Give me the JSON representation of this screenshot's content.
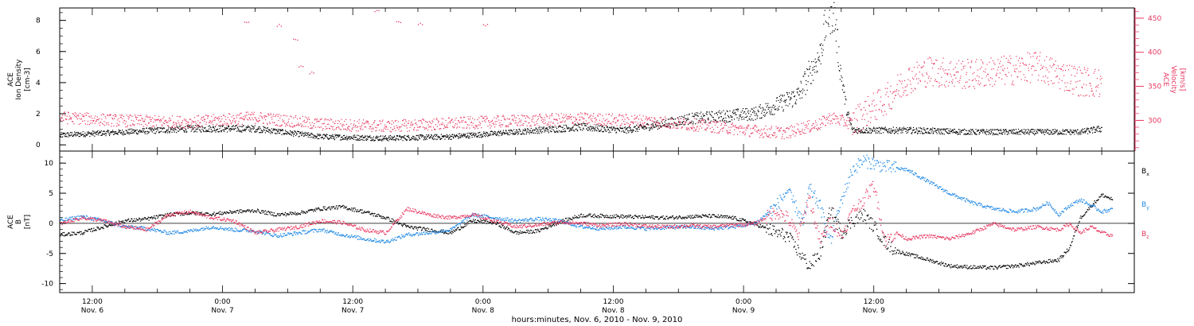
{
  "chart_data": [
    {
      "type": "scatter",
      "panel": "upper",
      "left_axis": {
        "label": [
          "ACE",
          "Ion Density",
          "[cm-3]"
        ],
        "ylim": [
          -0.4,
          8.8
        ],
        "ticks": [
          0,
          2,
          4,
          6,
          8
        ]
      },
      "right_axis": {
        "label": [
          "ACE",
          "Velocity",
          "[km/s]"
        ],
        "ylim": [
          255,
          465
        ],
        "ticks": [
          300,
          350,
          400,
          450
        ],
        "color": "#e8365f"
      },
      "series": [
        {
          "name": "",
          "axis": "left",
          "color": "#000000",
          "points": [
            [
              0,
              0.6
            ],
            [
              6,
              0.8
            ],
            [
              12,
              1.0
            ],
            [
              18,
              1.0
            ],
            [
              24,
              0.5
            ],
            [
              30,
              0.4
            ],
            [
              36,
              0.5
            ],
            [
              42,
              0.8
            ],
            [
              48,
              1.1
            ],
            [
              52,
              0.9
            ],
            [
              54,
              1.1
            ],
            [
              58,
              1.6
            ],
            [
              62,
              1.8
            ],
            [
              64,
              1.9
            ],
            [
              66,
              2.4
            ],
            [
              68,
              3.0
            ],
            [
              70,
              5.5
            ],
            [
              70.7,
              8.0
            ],
            [
              71.3,
              8.2
            ],
            [
              71.8,
              5.0
            ],
            [
              72.5,
              2.0
            ],
            [
              73,
              0.9
            ],
            [
              78,
              0.9
            ],
            [
              84,
              0.8
            ],
            [
              90,
              0.8
            ],
            [
              94,
              0.8
            ],
            [
              96,
              1.0
            ]
          ]
        },
        {
          "name": "",
          "axis": "right",
          "color": "#e8365f",
          "points": [
            [
              0,
              305
            ],
            [
              6,
              300
            ],
            [
              12,
              298
            ],
            [
              18,
              305
            ],
            [
              24,
              295
            ],
            [
              30,
              292
            ],
            [
              36,
              296
            ],
            [
              42,
              300
            ],
            [
              48,
              303
            ],
            [
              54,
              300
            ],
            [
              60,
              292
            ],
            [
              64,
              285
            ],
            [
              66,
              283
            ],
            [
              67,
              282
            ],
            [
              68,
              288
            ],
            [
              70,
              295
            ],
            [
              71,
              305
            ],
            [
              72,
              300
            ],
            [
              73,
              296
            ],
            [
              74,
              310
            ],
            [
              76,
              330
            ],
            [
              78,
              360
            ],
            [
              80,
              373
            ],
            [
              82,
              370
            ],
            [
              84,
              368
            ],
            [
              86,
              372
            ],
            [
              88,
              375
            ],
            [
              90,
              380
            ],
            [
              92,
              368
            ],
            [
              94,
              358
            ],
            [
              96,
              355
            ]
          ]
        },
        {
          "name": "",
          "axis": "right",
          "color": "#e8365f",
          "points": [
            [
              17,
              445
            ],
            [
              20,
              440
            ],
            [
              21.5,
              420
            ],
            [
              22,
              380
            ],
            [
              23,
              370
            ],
            [
              29,
              462
            ],
            [
              31,
              445
            ],
            [
              33,
              442
            ],
            [
              39,
              441
            ]
          ]
        }
      ]
    },
    {
      "type": "line",
      "panel": "lower",
      "left_axis": {
        "label": [
          "ACE",
          "B",
          "[nT]"
        ],
        "ylim": [
          -11.5,
          12
        ],
        "ticks": [
          -10,
          -5,
          0,
          5,
          10
        ]
      },
      "series": [
        {
          "name": "Bx",
          "color": "#000000",
          "points": [
            [
              0,
              -1.8
            ],
            [
              2,
              -1.5
            ],
            [
              4,
              -0.5
            ],
            [
              6,
              0.5
            ],
            [
              8,
              0.8
            ],
            [
              10,
              1.5
            ],
            [
              12,
              1.8
            ],
            [
              14,
              1.6
            ],
            [
              16,
              2.0
            ],
            [
              18,
              2.2
            ],
            [
              20,
              1.5
            ],
            [
              22,
              1.8
            ],
            [
              24,
              2.5
            ],
            [
              26,
              2.8
            ],
            [
              28,
              2.0
            ],
            [
              30,
              1.0
            ],
            [
              32,
              -0.5
            ],
            [
              34,
              -1.0
            ],
            [
              36,
              -1.5
            ],
            [
              38,
              0.5
            ],
            [
              40,
              0.2
            ],
            [
              42,
              -1.5
            ],
            [
              44,
              -1.2
            ],
            [
              46,
              0.3
            ],
            [
              48,
              1.4
            ],
            [
              50,
              1.3
            ],
            [
              52,
              1.2
            ],
            [
              54,
              1.1
            ],
            [
              56,
              1.0
            ],
            [
              58,
              1.2
            ],
            [
              60,
              1.3
            ],
            [
              62,
              1.0
            ],
            [
              64,
              0.0
            ],
            [
              66,
              -1.5
            ],
            [
              67,
              -2.0
            ],
            [
              68,
              -4.5
            ],
            [
              69,
              -7.0
            ],
            [
              70,
              -5.0
            ],
            [
              71,
              2.5
            ],
            [
              72,
              -1.5
            ],
            [
              73,
              0.5
            ],
            [
              74,
              1.5
            ],
            [
              75,
              -0.5
            ],
            [
              76,
              -3.0
            ],
            [
              77,
              -4.5
            ],
            [
              78,
              -5.0
            ],
            [
              80,
              -6.0
            ],
            [
              82,
              -7.0
            ],
            [
              84,
              -7.2
            ],
            [
              86,
              -7.3
            ],
            [
              88,
              -7.0
            ],
            [
              90,
              -6.5
            ],
            [
              92,
              -6.0
            ],
            [
              93,
              -4.0
            ],
            [
              94,
              1.0
            ],
            [
              95,
              3.0
            ],
            [
              96,
              4.8
            ],
            [
              97,
              4.0
            ]
          ]
        },
        {
          "name": "By",
          "color": "#1e88e5",
          "points": [
            [
              0,
              0.5
            ],
            [
              2,
              1.2
            ],
            [
              4,
              0.5
            ],
            [
              6,
              -0.5
            ],
            [
              8,
              -0.8
            ],
            [
              10,
              -1.5
            ],
            [
              12,
              -1.2
            ],
            [
              14,
              -0.5
            ],
            [
              16,
              -1.0
            ],
            [
              18,
              -1.2
            ],
            [
              20,
              -2.0
            ],
            [
              22,
              -1.5
            ],
            [
              24,
              -1.0
            ],
            [
              26,
              -1.8
            ],
            [
              28,
              -2.5
            ],
            [
              30,
              -3.0
            ],
            [
              32,
              -1.8
            ],
            [
              34,
              -1.5
            ],
            [
              36,
              -1.0
            ],
            [
              38,
              1.5
            ],
            [
              40,
              1.0
            ],
            [
              42,
              0.5
            ],
            [
              44,
              0.8
            ],
            [
              46,
              0.5
            ],
            [
              48,
              -0.5
            ],
            [
              50,
              -0.8
            ],
            [
              52,
              -0.5
            ],
            [
              54,
              -0.8
            ],
            [
              56,
              -0.6
            ],
            [
              58,
              -0.5
            ],
            [
              60,
              -0.8
            ],
            [
              62,
              -0.5
            ],
            [
              64,
              0.0
            ],
            [
              66,
              3.0
            ],
            [
              67,
              5.5
            ],
            [
              68,
              2.0
            ],
            [
              68.5,
              0.0
            ],
            [
              69,
              6.0
            ],
            [
              70,
              3.0
            ],
            [
              71,
              -3.0
            ],
            [
              72,
              4.0
            ],
            [
              73,
              9.0
            ],
            [
              74,
              10.5
            ],
            [
              75,
              10.0
            ],
            [
              76,
              9.5
            ],
            [
              78,
              9.0
            ],
            [
              80,
              7.0
            ],
            [
              82,
              5.0
            ],
            [
              84,
              3.5
            ],
            [
              86,
              2.5
            ],
            [
              88,
              2.0
            ],
            [
              90,
              2.5
            ],
            [
              91,
              3.5
            ],
            [
              92,
              1.5
            ],
            [
              93,
              3.0
            ],
            [
              94,
              4.0
            ],
            [
              95,
              3.0
            ],
            [
              96,
              2.0
            ],
            [
              97,
              2.5
            ]
          ]
        },
        {
          "name": "Bz",
          "color": "#e8365f",
          "points": [
            [
              0,
              0.0
            ],
            [
              2,
              1.0
            ],
            [
              4,
              0.5
            ],
            [
              6,
              -0.5
            ],
            [
              8,
              -1.0
            ],
            [
              10,
              1.5
            ],
            [
              12,
              2.0
            ],
            [
              14,
              1.0
            ],
            [
              16,
              0.5
            ],
            [
              18,
              -1.5
            ],
            [
              20,
              -1.0
            ],
            [
              22,
              -0.5
            ],
            [
              24,
              0.5
            ],
            [
              26,
              0.2
            ],
            [
              28,
              -1.0
            ],
            [
              30,
              -1.5
            ],
            [
              32,
              2.5
            ],
            [
              34,
              1.5
            ],
            [
              36,
              1.0
            ],
            [
              38,
              1.5
            ],
            [
              40,
              0.5
            ],
            [
              42,
              -0.5
            ],
            [
              44,
              -0.2
            ],
            [
              46,
              0.3
            ],
            [
              48,
              0.1
            ],
            [
              50,
              -0.3
            ],
            [
              52,
              0.0
            ],
            [
              54,
              -0.4
            ],
            [
              56,
              -0.5
            ],
            [
              58,
              -0.3
            ],
            [
              60,
              -0.5
            ],
            [
              62,
              -0.2
            ],
            [
              64,
              0.0
            ],
            [
              66,
              2.0
            ],
            [
              67,
              1.0
            ],
            [
              68,
              -2.0
            ],
            [
              69,
              4.5
            ],
            [
              70,
              -3.0
            ],
            [
              71,
              0.5
            ],
            [
              72,
              -2.0
            ],
            [
              73,
              2.0
            ],
            [
              74,
              4.0
            ],
            [
              75,
              6.5
            ],
            [
              76,
              -3.0
            ],
            [
              77,
              -1.5
            ],
            [
              78,
              -2.5
            ],
            [
              80,
              -2.0
            ],
            [
              82,
              -2.5
            ],
            [
              84,
              -1.5
            ],
            [
              86,
              0.0
            ],
            [
              88,
              -1.0
            ],
            [
              90,
              -0.5
            ],
            [
              92,
              -1.0
            ],
            [
              93,
              0.0
            ],
            [
              94,
              -1.5
            ],
            [
              95,
              -0.5
            ],
            [
              96,
              -1.5
            ],
            [
              97,
              -2.0
            ]
          ]
        }
      ],
      "legend": {
        "placement": "right",
        "entries": [
          {
            "base": "B",
            "sub": "x",
            "color": "#000000"
          },
          {
            "base": "B",
            "sub": "y",
            "color": "#1e88e5"
          },
          {
            "base": "B",
            "sub": "z",
            "color": "#e8365f"
          }
        ]
      }
    }
  ],
  "time_axis": {
    "unit": "hours",
    "xlim": [
      0,
      99
    ],
    "major_ticks": [
      {
        "x": 3,
        "time": "12:00",
        "date": "Nov. 6"
      },
      {
        "x": 15,
        "time": "0:00",
        "date": "Nov. 7"
      },
      {
        "x": 27,
        "time": "12:00",
        "date": "Nov. 7"
      },
      {
        "x": 39,
        "time": "0:00",
        "date": "Nov. 8"
      },
      {
        "x": 51,
        "time": "12:00",
        "date": "Nov. 8"
      },
      {
        "x": 63,
        "time": "0:00",
        "date": "Nov. 9"
      },
      {
        "x": 75,
        "time": "12:00",
        "date": "Nov. 9"
      }
    ],
    "minor_step": 3,
    "xlabel": "hours:minutes, Nov.  6, 2010 - Nov.  9, 2010"
  }
}
